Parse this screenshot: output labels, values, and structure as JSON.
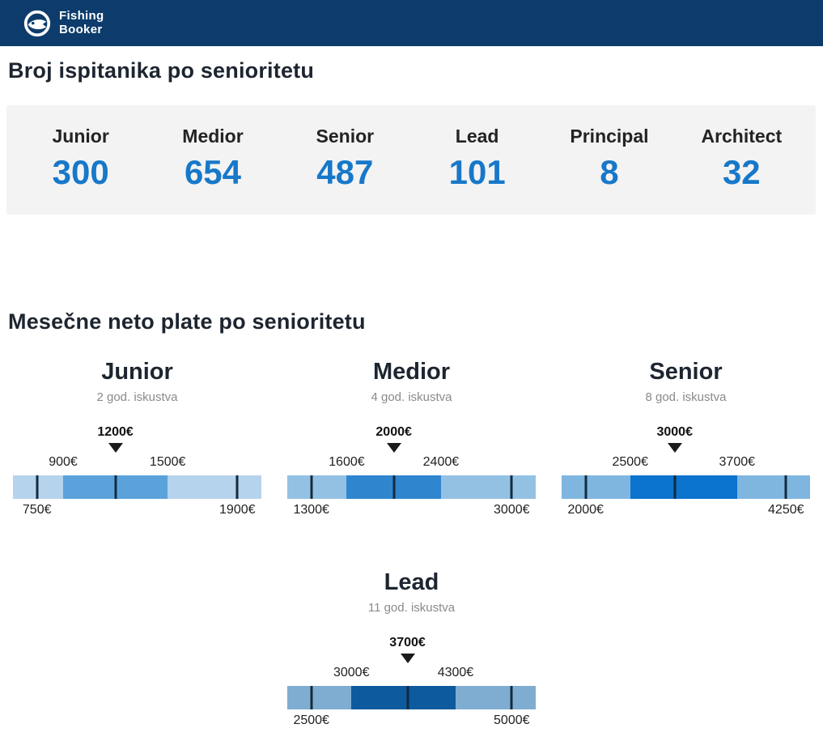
{
  "colors": {
    "header_background": "#0d3c6c",
    "accent_number_blue": "#1778c9",
    "heading_text": "#1d2530",
    "subtitle_gray": "#8a8a8a",
    "tick_line": "#142a3d",
    "stats_panel_background": "#f3f3f3"
  },
  "header": {
    "brand_line1": "Fishing",
    "brand_line2": "Booker"
  },
  "chart_data": [
    {
      "type": "bar",
      "title": "Broj ispitanika po senioritetu",
      "categories": [
        "Junior",
        "Medior",
        "Senior",
        "Lead",
        "Principal",
        "Architect"
      ],
      "values": [
        300,
        654,
        487,
        101,
        8,
        32
      ],
      "value_color": "#1778c9"
    },
    {
      "type": "table",
      "title": "Mesečne neto plate po senioritetu",
      "unit": "€",
      "columns": [
        "seniority",
        "experience",
        "min",
        "q1",
        "median",
        "q3",
        "max"
      ],
      "rows": [
        {
          "seniority": "Junior",
          "experience": "2 god. iskustva",
          "min": 750,
          "q1": 900,
          "median": 1200,
          "q3": 1500,
          "max": 1900,
          "labels": {
            "min": "750€",
            "q1": "900€",
            "median": "1200€",
            "q3": "1500€",
            "max": "1900€"
          },
          "colors": {
            "band": "#b5d3ed",
            "iqr": "#5aa2dc"
          }
        },
        {
          "seniority": "Medior",
          "experience": "4 god. iskustva",
          "min": 1300,
          "q1": 1600,
          "median": 2000,
          "q3": 2400,
          "max": 3000,
          "labels": {
            "min": "1300€",
            "q1": "1600€",
            "median": "2000€",
            "q3": "2400€",
            "max": "3000€"
          },
          "colors": {
            "band": "#93c1e4",
            "iqr": "#2e86cf"
          }
        },
        {
          "seniority": "Senior",
          "experience": "8 god. iskustva",
          "min": 2000,
          "q1": 2500,
          "median": 3000,
          "q3": 3700,
          "max": 4250,
          "labels": {
            "min": "2000€",
            "q1": "2500€",
            "median": "3000€",
            "q3": "3700€",
            "max": "4250€"
          },
          "colors": {
            "band": "#7fb6e0",
            "iqr": "#0b74ce"
          }
        },
        {
          "seniority": "Lead",
          "experience": "11 god. iskustva",
          "min": 2500,
          "q1": 3000,
          "median": 3700,
          "q3": 4300,
          "max": 5000,
          "labels": {
            "min": "2500€",
            "q1": "3000€",
            "median": "3700€",
            "q3": "4300€",
            "max": "5000€"
          },
          "colors": {
            "band": "#7fadd1",
            "iqr": "#0d5a9e"
          }
        }
      ]
    }
  ]
}
